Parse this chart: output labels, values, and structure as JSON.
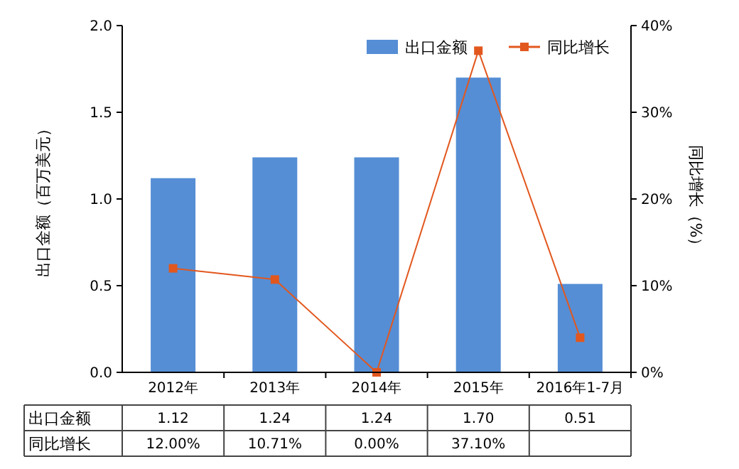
{
  "chart_data": {
    "type": "bar",
    "categories": [
      "2012年",
      "2013年",
      "2014年",
      "2015年",
      "2016年1-7月"
    ],
    "ylabel": "出口金额（百万美元）",
    "y2label": "同比增长（%）",
    "ylim": [
      0,
      2
    ],
    "yticks": [
      {
        "value": 0,
        "label": "0.0"
      },
      {
        "value": 0.5,
        "label": "0.5"
      },
      {
        "value": 1,
        "label": "1.0"
      },
      {
        "value": 1.5,
        "label": "1.5"
      },
      {
        "value": 2,
        "label": "2.0"
      }
    ],
    "y2lim": [
      0,
      40
    ],
    "y2ticks": [
      {
        "value": 0,
        "label": "0%"
      },
      {
        "value": 10,
        "label": "10%"
      },
      {
        "value": 20,
        "label": "20%"
      },
      {
        "value": 30,
        "label": "30%"
      },
      {
        "value": 40,
        "label": "40%"
      }
    ],
    "series": [
      {
        "name": "出口金额",
        "color": "#558ed5",
        "values": [
          1.12,
          1.24,
          1.24,
          1.7,
          0.51
        ],
        "value_labels": [
          "1.12",
          "1.24",
          "1.24",
          "1.70",
          "0.51"
        ]
      },
      {
        "name": "同比增长",
        "type": "line",
        "axis": "y2",
        "color": "#e2571e",
        "marker": "square",
        "values": [
          12,
          10.71,
          0,
          37.1,
          4
        ],
        "value_labels": [
          "12.00%",
          "10.71%",
          "0.00%",
          "37.10%",
          null
        ]
      }
    ],
    "legend": "top right"
  }
}
